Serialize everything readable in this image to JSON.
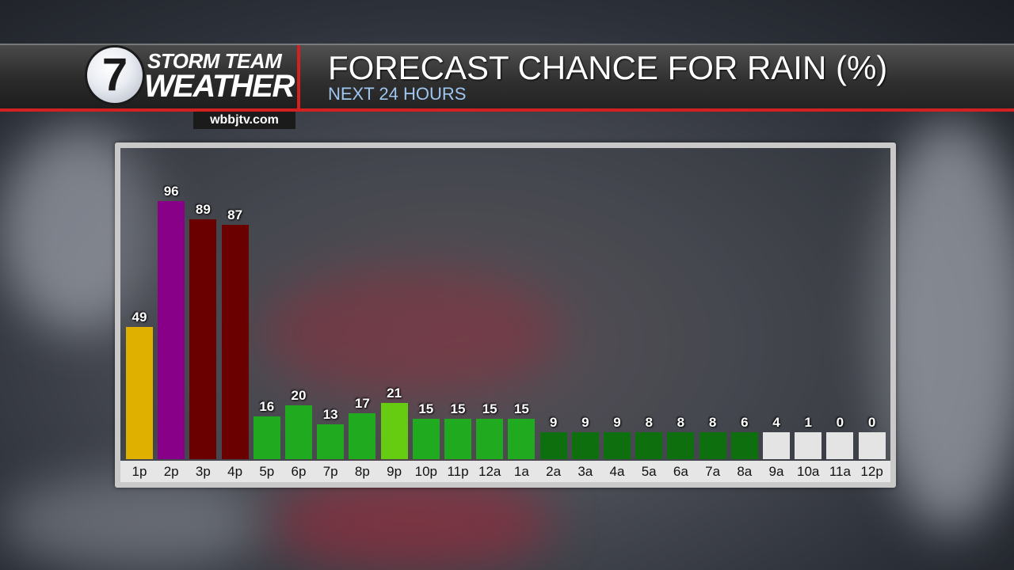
{
  "header": {
    "logo_numeral": "7",
    "logo_line1": "STORM TEAM",
    "logo_line2": "WEATHER",
    "website": "wbbjtv.com",
    "title": "FORECAST CHANCE FOR RAIN (%)",
    "subtitle": "NEXT 24 HOURS"
  },
  "colors": {
    "brand_red": "#d32020",
    "subtitle_blue": "#9fc6ef"
  },
  "chart_data": {
    "type": "bar",
    "title": "FORECAST CHANCE FOR RAIN (%)",
    "subtitle": "NEXT 24 HOURS",
    "xlabel": "",
    "ylabel": "",
    "ylim": [
      0,
      100
    ],
    "grid": false,
    "categories": [
      "1p",
      "2p",
      "3p",
      "4p",
      "5p",
      "6p",
      "7p",
      "8p",
      "9p",
      "10p",
      "11p",
      "12a",
      "1a",
      "2a",
      "3a",
      "4a",
      "5a",
      "6a",
      "7a",
      "8a",
      "9a",
      "10a",
      "11a",
      "12p"
    ],
    "values": [
      49,
      96,
      89,
      87,
      16,
      20,
      13,
      17,
      21,
      15,
      15,
      15,
      15,
      9,
      9,
      9,
      8,
      8,
      8,
      6,
      4,
      1,
      0,
      0
    ],
    "bar_colors": [
      "#e0b000",
      "#880088",
      "#6b0000",
      "#6b0000",
      "#1faa1f",
      "#1faa1f",
      "#1faa1f",
      "#1faa1f",
      "#66cc11",
      "#1faa1f",
      "#1faa1f",
      "#1faa1f",
      "#1faa1f",
      "#0e6f0e",
      "#0e6f0e",
      "#0e6f0e",
      "#0e6f0e",
      "#0e6f0e",
      "#0e6f0e",
      "#0e6f0e",
      "#e4e4e4",
      "#e4e4e4",
      "#e4e4e4",
      "#e4e4e4"
    ]
  }
}
